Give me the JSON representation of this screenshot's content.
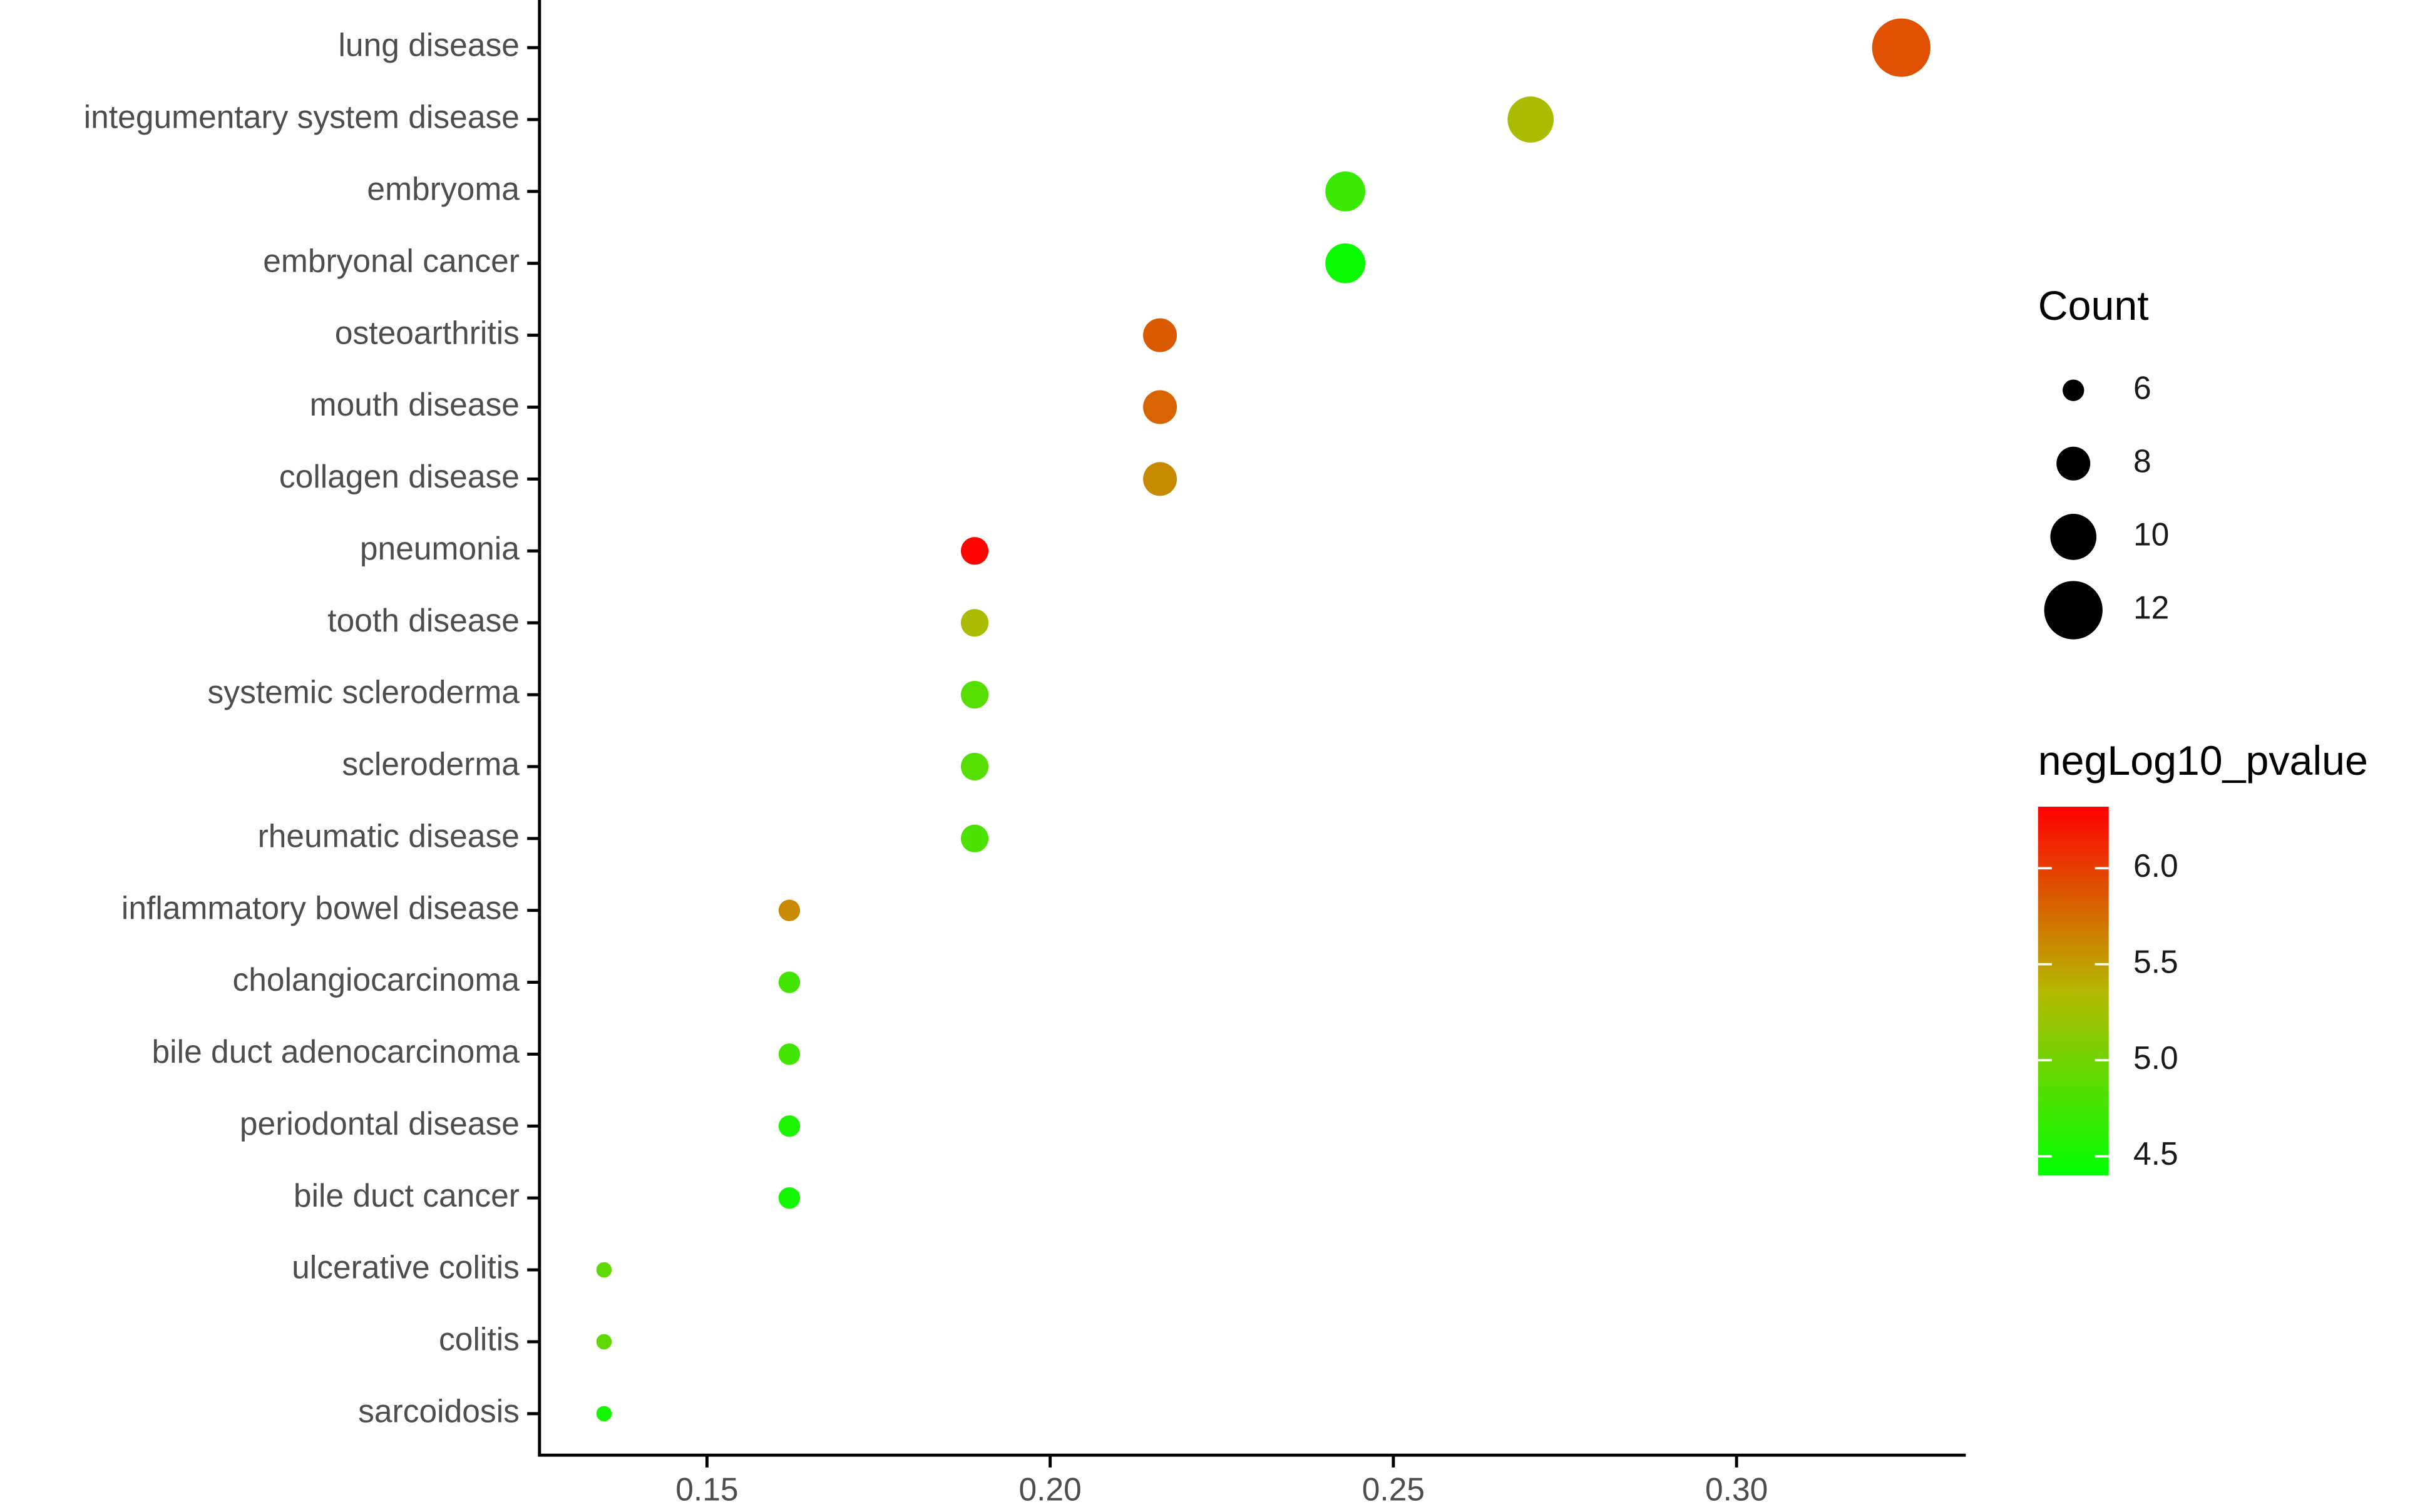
{
  "chart_data": {
    "type": "dot",
    "categories": [
      "lung disease",
      "integumentary system disease",
      "embryoma",
      "embryonal cancer",
      "osteoarthritis",
      "mouth disease",
      "collagen disease",
      "pneumonia",
      "tooth disease",
      "systemic scleroderma",
      "scleroderma",
      "rheumatic disease",
      "inflammatory bowel disease",
      "cholangiocarcinoma",
      "bile duct adenocarcinoma",
      "periodontal disease",
      "bile duct cancer",
      "ulcerative colitis",
      "colitis",
      "sarcoidosis"
    ],
    "values": [
      0.324,
      0.27,
      0.243,
      0.243,
      0.216,
      0.216,
      0.216,
      0.189,
      0.189,
      0.189,
      0.189,
      0.189,
      0.162,
      0.162,
      0.162,
      0.162,
      0.162,
      0.135,
      0.135,
      0.135
    ],
    "sizes": [
      12,
      10,
      9,
      9,
      8,
      8,
      8,
      7,
      7,
      7,
      7,
      7,
      6,
      6,
      6,
      6,
      6,
      5,
      5,
      5
    ],
    "color_values": [
      5.9,
      5.3,
      4.7,
      4.45,
      5.85,
      5.8,
      5.6,
      6.3,
      5.3,
      4.85,
      4.85,
      4.8,
      5.6,
      4.75,
      4.75,
      4.55,
      4.5,
      4.9,
      4.9,
      4.5
    ],
    "xlim": [
      0.1256,
      0.3334
    ],
    "xticks": [
      0.15,
      {
        "value": 0.2,
        "label": "0.20"
      },
      0.25,
      {
        "value": 0.3,
        "label": "0.30"
      }
    ],
    "size_legend": {
      "title": "Count",
      "ticks": [
        6,
        8,
        10,
        12
      ]
    },
    "color_legend": {
      "title": "negLog10_pvalue",
      "lim": [
        4.4,
        6.32
      ],
      "ticks": [
        4.5,
        {
          "value": 5,
          "label": "5.0"
        },
        5.5,
        {
          "value": 6,
          "label": "6.0"
        }
      ]
    },
    "color_scale": {
      "low": "#00ff00",
      "mid": "#b5b800",
      "high": "#ff0000"
    }
  }
}
